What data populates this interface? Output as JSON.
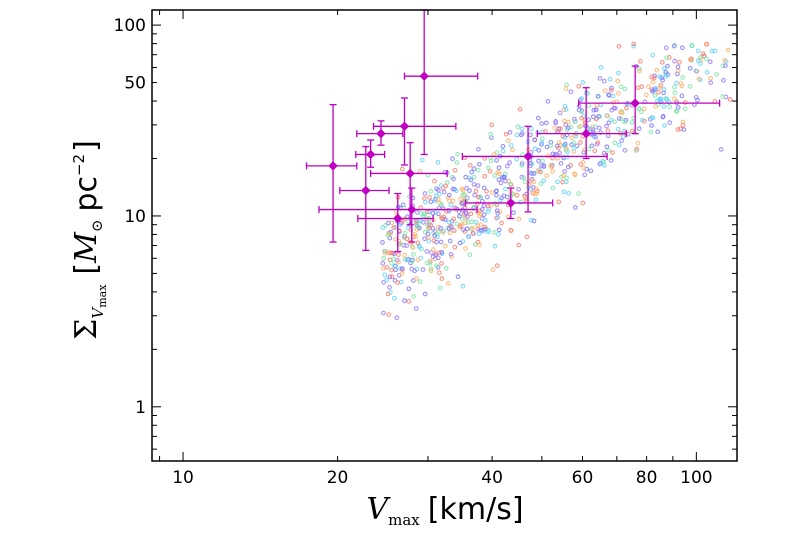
{
  "chart_data": {
    "type": "scatter",
    "xlabel": {
      "symbol": "V",
      "subscript": "max",
      "unit": "[km/s]"
    },
    "ylabel": {
      "symbol": "Σ",
      "subscript_symbol": "V",
      "subscript_sub": "max",
      "unit_open": "[",
      "unit_symbol": "M",
      "unit_sun": "⊙",
      "unit_rest": "pc",
      "unit_exp": "−2",
      "unit_close": "]"
    },
    "x_scale": "log",
    "y_scale": "log",
    "xlim": [
      8.7,
      120
    ],
    "ylim": [
      0.52,
      120
    ],
    "x_ticks": [
      10,
      20,
      40,
      60,
      80,
      100
    ],
    "x_tick_labels": [
      "10",
      "20",
      "40",
      "60",
      "80",
      "100"
    ],
    "y_ticks": [
      1,
      10,
      50,
      100
    ],
    "y_tick_labels": [
      "1",
      "10",
      "50",
      "100"
    ],
    "grid": false,
    "legend": "none",
    "observed": {
      "color": "#c000c0",
      "points": [
        {
          "x": 19.6,
          "y": 18.3,
          "xerr": [
            2.2,
            2.2
          ],
          "yerr": [
            11.0,
            20.0
          ]
        },
        {
          "x": 22.7,
          "y": 13.6,
          "xerr": [
            2.5,
            2.5
          ],
          "yerr": [
            7.0,
            9.5
          ]
        },
        {
          "x": 23.2,
          "y": 21.0,
          "xerr": [
            1.5,
            1.5
          ],
          "yerr": [
            3.0,
            4.0
          ]
        },
        {
          "x": 24.3,
          "y": 27.0,
          "xerr": [
            2.5,
            2.5
          ],
          "yerr": [
            3.5,
            4.5
          ]
        },
        {
          "x": 26.2,
          "y": 9.7,
          "xerr": [
            4.3,
            4.5
          ],
          "yerr": [
            3.2,
            3.4
          ]
        },
        {
          "x": 27.0,
          "y": 29.5,
          "xerr": [
            3.5,
            7.0
          ],
          "yerr": [
            11.0,
            12.0
          ]
        },
        {
          "x": 27.7,
          "y": 16.7,
          "xerr": [
            4.5,
            5.0
          ],
          "yerr": [
            7.7,
            7.5
          ]
        },
        {
          "x": 27.9,
          "y": 10.8,
          "xerr": [
            9.5,
            9.5
          ],
          "yerr": [
            3.5,
            3.2
          ]
        },
        {
          "x": 29.5,
          "y": 54.0,
          "xerr": [
            2.5,
            8.0
          ],
          "yerr": [
            33.0,
            66.0
          ]
        },
        {
          "x": 43.5,
          "y": 11.7,
          "xerr": [
            8.0,
            9.0
          ],
          "yerr": [
            2.0,
            2.3
          ]
        },
        {
          "x": 47.0,
          "y": 20.5,
          "xerr": [
            12.0,
            20.0
          ],
          "yerr": [
            10.0,
            9.0
          ]
        },
        {
          "x": 61.0,
          "y": 27.0,
          "xerr": [
            12.0,
            12.0
          ],
          "yerr": [
            7.0,
            20.0
          ]
        },
        {
          "x": 76.0,
          "y": 39.0,
          "xerr": [
            17.0,
            35.0
          ],
          "yerr": [
            12.0,
            22.0
          ]
        }
      ]
    },
    "simulated": {
      "colors": [
        "#ff7f6e",
        "#ffb36b",
        "#7fe7a8",
        "#66d3ff",
        "#7a7cff",
        "#9a7dff"
      ],
      "x_min": 22.5,
      "x_max": 118,
      "count": 900
    }
  }
}
